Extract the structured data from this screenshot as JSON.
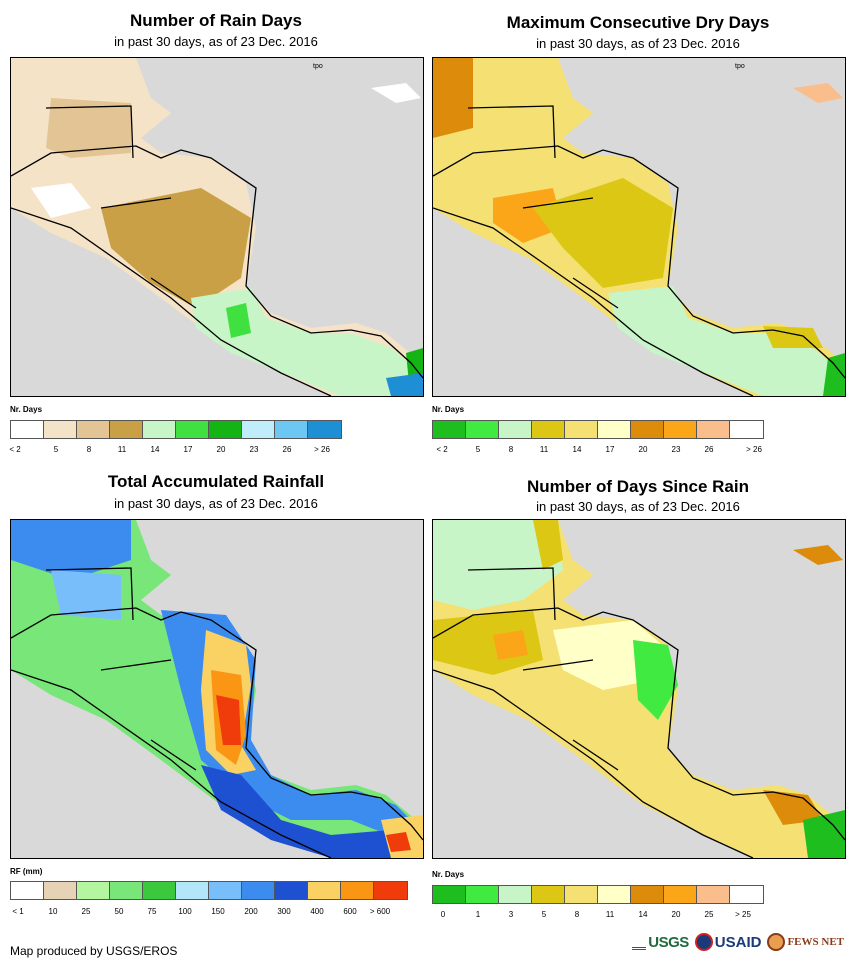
{
  "panels": [
    {
      "id": "rain-days",
      "title": "Number of Rain Days",
      "subtitle": "in past 30 days, as of 23 Dec. 2016",
      "units": "Nr. Days",
      "legend_colors": [
        "#ffffff",
        "#f5e3c8",
        "#e3c595",
        "#c9a045",
        "#c8f5c8",
        "#40e040",
        "#14b414",
        "#bfeefa",
        "#6cc8f2",
        "#1f8fd5"
      ],
      "legend_labels": [
        "< 2",
        "5",
        "8",
        "11",
        "14",
        "17",
        "20",
        "23",
        "26",
        "> 26"
      ]
    },
    {
      "id": "dry-days",
      "title": "Maximum Consecutive Dry Days",
      "subtitle": "in past 30 days, as of 23 Dec. 2016",
      "units": "Nr. Days",
      "legend_colors": [
        "#1dbe1d",
        "#40ea40",
        "#c8f5c8",
        "#dcc814",
        "#f5e173",
        "#ffffc8",
        "#dc8c0a",
        "#fba618",
        "#fabe8c",
        "#ffffff"
      ],
      "legend_labels": [
        "< 2",
        "5",
        "8",
        "11",
        "14",
        "17",
        "20",
        "23",
        "26",
        "> 26"
      ]
    },
    {
      "id": "total-rainfall",
      "title": "Total Accumulated Rainfall",
      "subtitle": "in past 30 days, as of 23 Dec. 2016",
      "units": "RF (mm)",
      "legend_colors": [
        "#ffffff",
        "#e6d2b4",
        "#b4f5a0",
        "#78e678",
        "#3cc83c",
        "#b4e6fa",
        "#78befa",
        "#3c8cf0",
        "#1e50d2",
        "#fad264",
        "#fa9614",
        "#f03c0a"
      ],
      "legend_labels": [
        "< 1",
        "10",
        "25",
        "50",
        "75",
        "100",
        "150",
        "200",
        "300",
        "400",
        "600",
        "> 600"
      ]
    },
    {
      "id": "days-since-rain",
      "title": "Number of Days Since Rain",
      "subtitle": "in past 30 days, as of 23 Dec. 2016",
      "units": "Nr. Days",
      "legend_colors": [
        "#1dbe1d",
        "#40ea40",
        "#c8f5c8",
        "#dcc814",
        "#f5e173",
        "#ffffc8",
        "#dc8c0a",
        "#fba618",
        "#fabe8c",
        "#ffffff"
      ],
      "legend_labels": [
        "0",
        "1",
        "3",
        "5",
        "8",
        "11",
        "14",
        "20",
        "25",
        "> 25"
      ]
    }
  ],
  "map_label": "tpo",
  "footer": "Map produced by USGS/EROS",
  "logos": {
    "usgs": "USGS",
    "usaid": "USAID",
    "fews": "FEWS NET"
  }
}
